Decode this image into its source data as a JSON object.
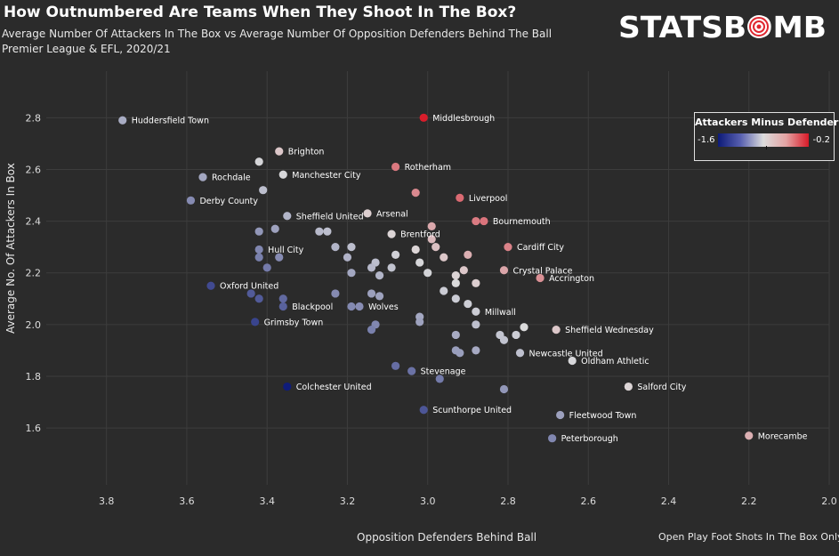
{
  "title": "How Outnumbered Are Teams When They Shoot In The Box?",
  "subtitle_1": "Average Number Of Attackers In The Box vs Average Number Of Opposition Defenders Behind The Ball",
  "subtitle_2": "Premier League & EFL, 2020/21",
  "logo_text": "STATSBOMB",
  "note": "Open Play Foot Shots In The Box Only",
  "legend": {
    "title": "Attackers Minus Defenders",
    "min_label": "-1.6",
    "max_label": "-0.2"
  },
  "colors": {
    "background": "#2b2b2b",
    "gridline": "#3d3d3d",
    "low": "#0d1a78",
    "mid": "#dcdcdc",
    "high": "#d81a28",
    "logo": "#ffffff",
    "logo_accent": "#e0262f"
  },
  "chart_data": {
    "type": "scatter",
    "title": "How Outnumbered Are Teams When They Shoot In The Box?",
    "xlabel": "Opposition Defenders Behind Ball",
    "ylabel": "Average No. Of Attackers In Box",
    "xlim": [
      3.95,
      2.0
    ],
    "ylim": [
      1.38,
      2.98
    ],
    "x_reversed": true,
    "x_ticks": [
      "3.8",
      "3.6",
      "3.4",
      "3.2",
      "3.0",
      "2.8",
      "2.6",
      "2.4",
      "2.2",
      "2.0"
    ],
    "y_ticks": [
      "1.6",
      "1.8",
      "2.0",
      "2.2",
      "2.4",
      "2.6",
      "2.8"
    ],
    "grid": true,
    "color_encoding": "attackers minus defenders",
    "color_range": [
      -1.6,
      -0.2
    ],
    "points": [
      {
        "x": 3.76,
        "y": 2.79,
        "label": "Huddersfield Town"
      },
      {
        "x": 3.01,
        "y": 2.8,
        "label": "Middlesbrough"
      },
      {
        "x": 3.37,
        "y": 2.67,
        "label": "Brighton"
      },
      {
        "x": 3.42,
        "y": 2.63,
        "label": ""
      },
      {
        "x": 3.08,
        "y": 2.61,
        "label": "Rotherham"
      },
      {
        "x": 3.56,
        "y": 2.57,
        "label": "Rochdale"
      },
      {
        "x": 3.36,
        "y": 2.58,
        "label": "Manchester City"
      },
      {
        "x": 3.41,
        "y": 2.52,
        "label": ""
      },
      {
        "x": 3.03,
        "y": 2.51,
        "label": ""
      },
      {
        "x": 2.92,
        "y": 2.49,
        "label": "Liverpool"
      },
      {
        "x": 3.59,
        "y": 2.48,
        "label": "Derby County"
      },
      {
        "x": 3.15,
        "y": 2.43,
        "label": "Arsenal"
      },
      {
        "x": 3.35,
        "y": 2.42,
        "label": "Sheffield United"
      },
      {
        "x": 2.88,
        "y": 2.4,
        "label": ""
      },
      {
        "x": 2.86,
        "y": 2.4,
        "label": "Bournemouth"
      },
      {
        "x": 2.99,
        "y": 2.38,
        "label": ""
      },
      {
        "x": 3.42,
        "y": 2.36,
        "label": ""
      },
      {
        "x": 3.38,
        "y": 2.37,
        "label": ""
      },
      {
        "x": 3.27,
        "y": 2.36,
        "label": ""
      },
      {
        "x": 3.25,
        "y": 2.36,
        "label": ""
      },
      {
        "x": 3.09,
        "y": 2.35,
        "label": "Brentford"
      },
      {
        "x": 2.99,
        "y": 2.33,
        "label": ""
      },
      {
        "x": 3.23,
        "y": 2.3,
        "label": ""
      },
      {
        "x": 3.19,
        "y": 2.3,
        "label": ""
      },
      {
        "x": 3.42,
        "y": 2.29,
        "label": "Hull City"
      },
      {
        "x": 3.03,
        "y": 2.29,
        "label": ""
      },
      {
        "x": 2.98,
        "y": 2.3,
        "label": ""
      },
      {
        "x": 2.8,
        "y": 2.3,
        "label": "Cardiff City"
      },
      {
        "x": 3.42,
        "y": 2.26,
        "label": ""
      },
      {
        "x": 3.37,
        "y": 2.26,
        "label": ""
      },
      {
        "x": 3.2,
        "y": 2.26,
        "label": ""
      },
      {
        "x": 3.08,
        "y": 2.27,
        "label": ""
      },
      {
        "x": 2.96,
        "y": 2.26,
        "label": ""
      },
      {
        "x": 2.9,
        "y": 2.27,
        "label": ""
      },
      {
        "x": 3.13,
        "y": 2.24,
        "label": ""
      },
      {
        "x": 3.02,
        "y": 2.24,
        "label": ""
      },
      {
        "x": 3.4,
        "y": 2.22,
        "label": ""
      },
      {
        "x": 3.14,
        "y": 2.22,
        "label": ""
      },
      {
        "x": 3.09,
        "y": 2.22,
        "label": ""
      },
      {
        "x": 2.91,
        "y": 2.21,
        "label": ""
      },
      {
        "x": 2.81,
        "y": 2.21,
        "label": "Crystal Palace"
      },
      {
        "x": 3.19,
        "y": 2.2,
        "label": ""
      },
      {
        "x": 3.12,
        "y": 2.19,
        "label": ""
      },
      {
        "x": 3.0,
        "y": 2.2,
        "label": ""
      },
      {
        "x": 2.93,
        "y": 2.19,
        "label": ""
      },
      {
        "x": 2.72,
        "y": 2.18,
        "label": "Accrington"
      },
      {
        "x": 2.93,
        "y": 2.16,
        "label": ""
      },
      {
        "x": 2.88,
        "y": 2.16,
        "label": ""
      },
      {
        "x": 3.54,
        "y": 2.15,
        "label": "Oxford United"
      },
      {
        "x": 3.23,
        "y": 2.12,
        "label": ""
      },
      {
        "x": 2.96,
        "y": 2.13,
        "label": ""
      },
      {
        "x": 3.44,
        "y": 2.12,
        "label": ""
      },
      {
        "x": 3.14,
        "y": 2.12,
        "label": ""
      },
      {
        "x": 3.12,
        "y": 2.11,
        "label": ""
      },
      {
        "x": 3.42,
        "y": 2.1,
        "label": ""
      },
      {
        "x": 3.36,
        "y": 2.1,
        "label": ""
      },
      {
        "x": 2.93,
        "y": 2.1,
        "label": ""
      },
      {
        "x": 2.9,
        "y": 2.08,
        "label": ""
      },
      {
        "x": 3.36,
        "y": 2.07,
        "label": "Blackpool"
      },
      {
        "x": 3.19,
        "y": 2.07,
        "label": ""
      },
      {
        "x": 3.17,
        "y": 2.07,
        "label": "Wolves"
      },
      {
        "x": 2.88,
        "y": 2.05,
        "label": "Millwall"
      },
      {
        "x": 3.02,
        "y": 2.03,
        "label": ""
      },
      {
        "x": 3.43,
        "y": 2.01,
        "label": "Grimsby Town"
      },
      {
        "x": 3.02,
        "y": 2.01,
        "label": ""
      },
      {
        "x": 3.13,
        "y": 2.0,
        "label": ""
      },
      {
        "x": 3.14,
        "y": 1.98,
        "label": ""
      },
      {
        "x": 2.88,
        "y": 2.0,
        "label": ""
      },
      {
        "x": 2.76,
        "y": 1.99,
        "label": ""
      },
      {
        "x": 2.68,
        "y": 1.98,
        "label": "Sheffield Wednesday"
      },
      {
        "x": 2.93,
        "y": 1.96,
        "label": ""
      },
      {
        "x": 2.82,
        "y": 1.96,
        "label": ""
      },
      {
        "x": 2.81,
        "y": 1.94,
        "label": ""
      },
      {
        "x": 2.78,
        "y": 1.96,
        "label": ""
      },
      {
        "x": 2.93,
        "y": 1.9,
        "label": ""
      },
      {
        "x": 2.92,
        "y": 1.89,
        "label": ""
      },
      {
        "x": 2.88,
        "y": 1.9,
        "label": ""
      },
      {
        "x": 2.77,
        "y": 1.89,
        "label": "Newcastle United"
      },
      {
        "x": 2.64,
        "y": 1.86,
        "label": "Oldham Athletic"
      },
      {
        "x": 3.08,
        "y": 1.84,
        "label": ""
      },
      {
        "x": 3.04,
        "y": 1.82,
        "label": "Stevenage"
      },
      {
        "x": 2.97,
        "y": 1.79,
        "label": ""
      },
      {
        "x": 3.35,
        "y": 1.76,
        "label": "Colchester United"
      },
      {
        "x": 2.81,
        "y": 1.75,
        "label": ""
      },
      {
        "x": 2.5,
        "y": 1.76,
        "label": "Salford City"
      },
      {
        "x": 3.01,
        "y": 1.67,
        "label": "Scunthorpe United"
      },
      {
        "x": 2.67,
        "y": 1.65,
        "label": "Fleetwood Town"
      },
      {
        "x": 2.69,
        "y": 1.56,
        "label": "Peterborough"
      },
      {
        "x": 2.2,
        "y": 1.57,
        "label": "Morecambe"
      }
    ]
  }
}
